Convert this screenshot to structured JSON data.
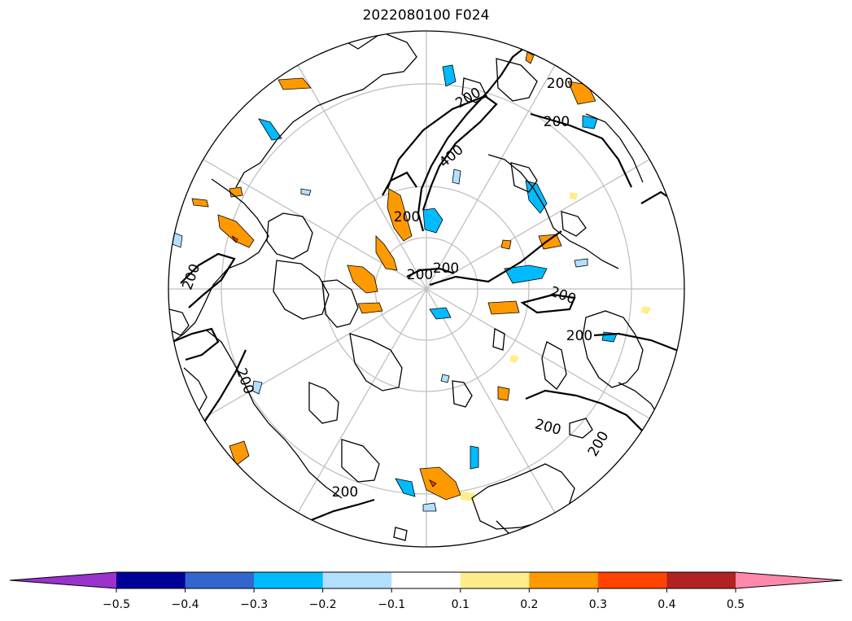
{
  "title": "2022080100 F024",
  "contour_labels": [
    "200",
    "400"
  ],
  "colorbar": {
    "ticks": [
      "−0.5",
      "−0.4",
      "−0.3",
      "−0.2",
      "−0.1",
      "0.1",
      "0.2",
      "0.3",
      "0.4",
      "0.5"
    ],
    "under_color": "#9933cc",
    "over_color": "#ff88aa",
    "colors": [
      "#000099",
      "#3366cc",
      "#00bbff",
      "#b3e0ff",
      "#ffffff",
      "#ffee88",
      "#ff9900",
      "#ff4400",
      "#b22222"
    ]
  },
  "legend_items": [
    {
      "level": "< -0.5",
      "color": "#9933cc"
    },
    {
      "level": "-0.5 to -0.4",
      "color": "#000099"
    },
    {
      "level": "-0.4 to -0.3",
      "color": "#3366cc"
    },
    {
      "level": "-0.3 to -0.2",
      "color": "#00bbff"
    },
    {
      "level": "-0.2 to -0.1",
      "color": "#b3e0ff"
    },
    {
      "level": "-0.1 to 0.1",
      "color": "#ffffff"
    },
    {
      "level": "0.1 to 0.2",
      "color": "#ffee88"
    },
    {
      "level": "0.2 to 0.3",
      "color": "#ff9900"
    },
    {
      "level": "0.3 to 0.4",
      "color": "#ff4400"
    },
    {
      "level": "0.4 to 0.5",
      "color": "#b22222"
    },
    {
      "level": "> 0.5",
      "color": "#ff88aa"
    }
  ],
  "projection": "north-polar-stereographic"
}
